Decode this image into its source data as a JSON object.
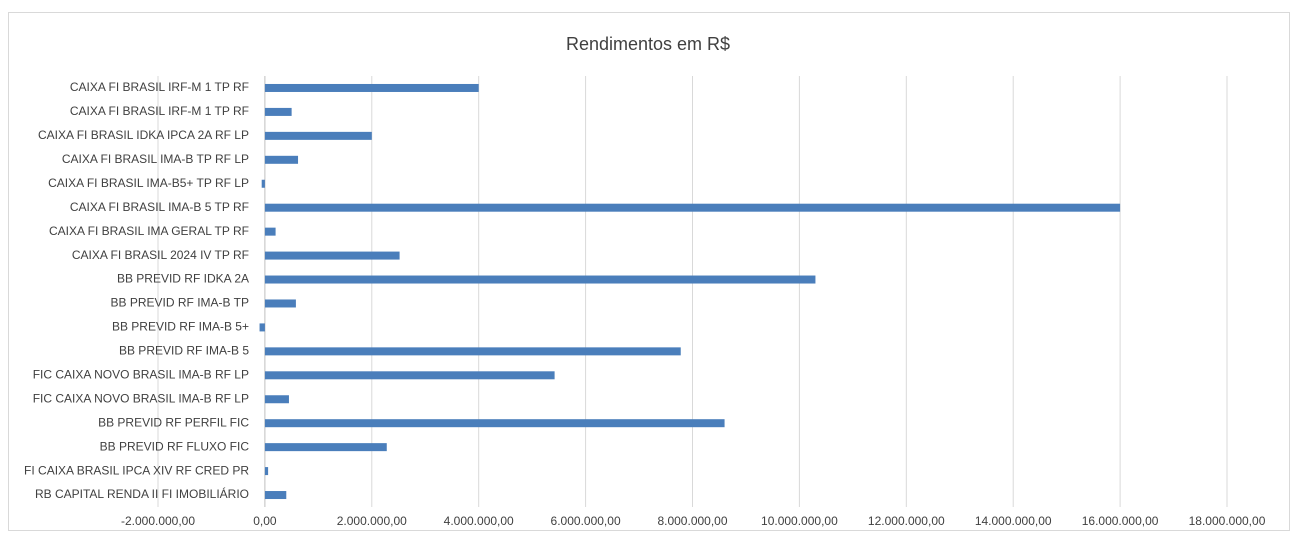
{
  "chart_data": {
    "type": "bar",
    "orientation": "horizontal",
    "title": "Rendimentos em R$",
    "categories": [
      "CAIXA FI BRASIL IRF-M 1 TP RF",
      "CAIXA FI BRASIL IRF-M 1 TP RF",
      "CAIXA FI BRASIL IDKA IPCA 2A RF LP",
      "CAIXA FI BRASIL IMA-B TP RF LP",
      "CAIXA FI BRASIL IMA-B5+ TP RF LP",
      "CAIXA FI BRASIL IMA-B 5 TP RF",
      "CAIXA FI BRASIL IMA GERAL TP RF",
      "CAIXA FI BRASIL 2024 IV TP RF",
      "BB PREVID RF IDKA 2A",
      "BB PREVID RF IMA-B TP",
      "BB PREVID RF IMA-B 5+",
      "BB PREVID RF IMA-B 5",
      "FIC CAIXA NOVO BRASIL IMA-B RF LP",
      "FIC CAIXA NOVO BRASIL IMA-B RF LP",
      "BB PREVID RF PERFIL FIC",
      "BB PREVID RF FLUXO FIC",
      "FI CAIXA BRASIL IPCA XIV RF CRED PR",
      "RB CAPITAL RENDA II FI IMOBILIÁRIO"
    ],
    "values": [
      4000000,
      500000,
      2000000,
      620000,
      -60000,
      16000000,
      200000,
      2520000,
      10300000,
      580000,
      -100000,
      7780000,
      5420000,
      450000,
      8600000,
      2280000,
      60000,
      400000
    ],
    "color": "#4a7ebb",
    "xlim": [
      -2000000,
      18000000
    ],
    "xticks": [
      {
        "value": -2000000,
        "label": "-2.000.000,00"
      },
      {
        "value": 0,
        "label": "0,00"
      },
      {
        "value": 2000000,
        "label": "2.000.000,00"
      },
      {
        "value": 4000000,
        "label": "4.000.000,00"
      },
      {
        "value": 6000000,
        "label": "6.000.000,00"
      },
      {
        "value": 8000000,
        "label": "8.000.000,00"
      },
      {
        "value": 10000000,
        "label": "10.000.000,00"
      },
      {
        "value": 12000000,
        "label": "12.000.000,00"
      },
      {
        "value": 14000000,
        "label": "14.000.000,00"
      },
      {
        "value": 16000000,
        "label": "16.000.000,00"
      },
      {
        "value": 18000000,
        "label": "18.000.000,00"
      }
    ],
    "grid": true
  }
}
